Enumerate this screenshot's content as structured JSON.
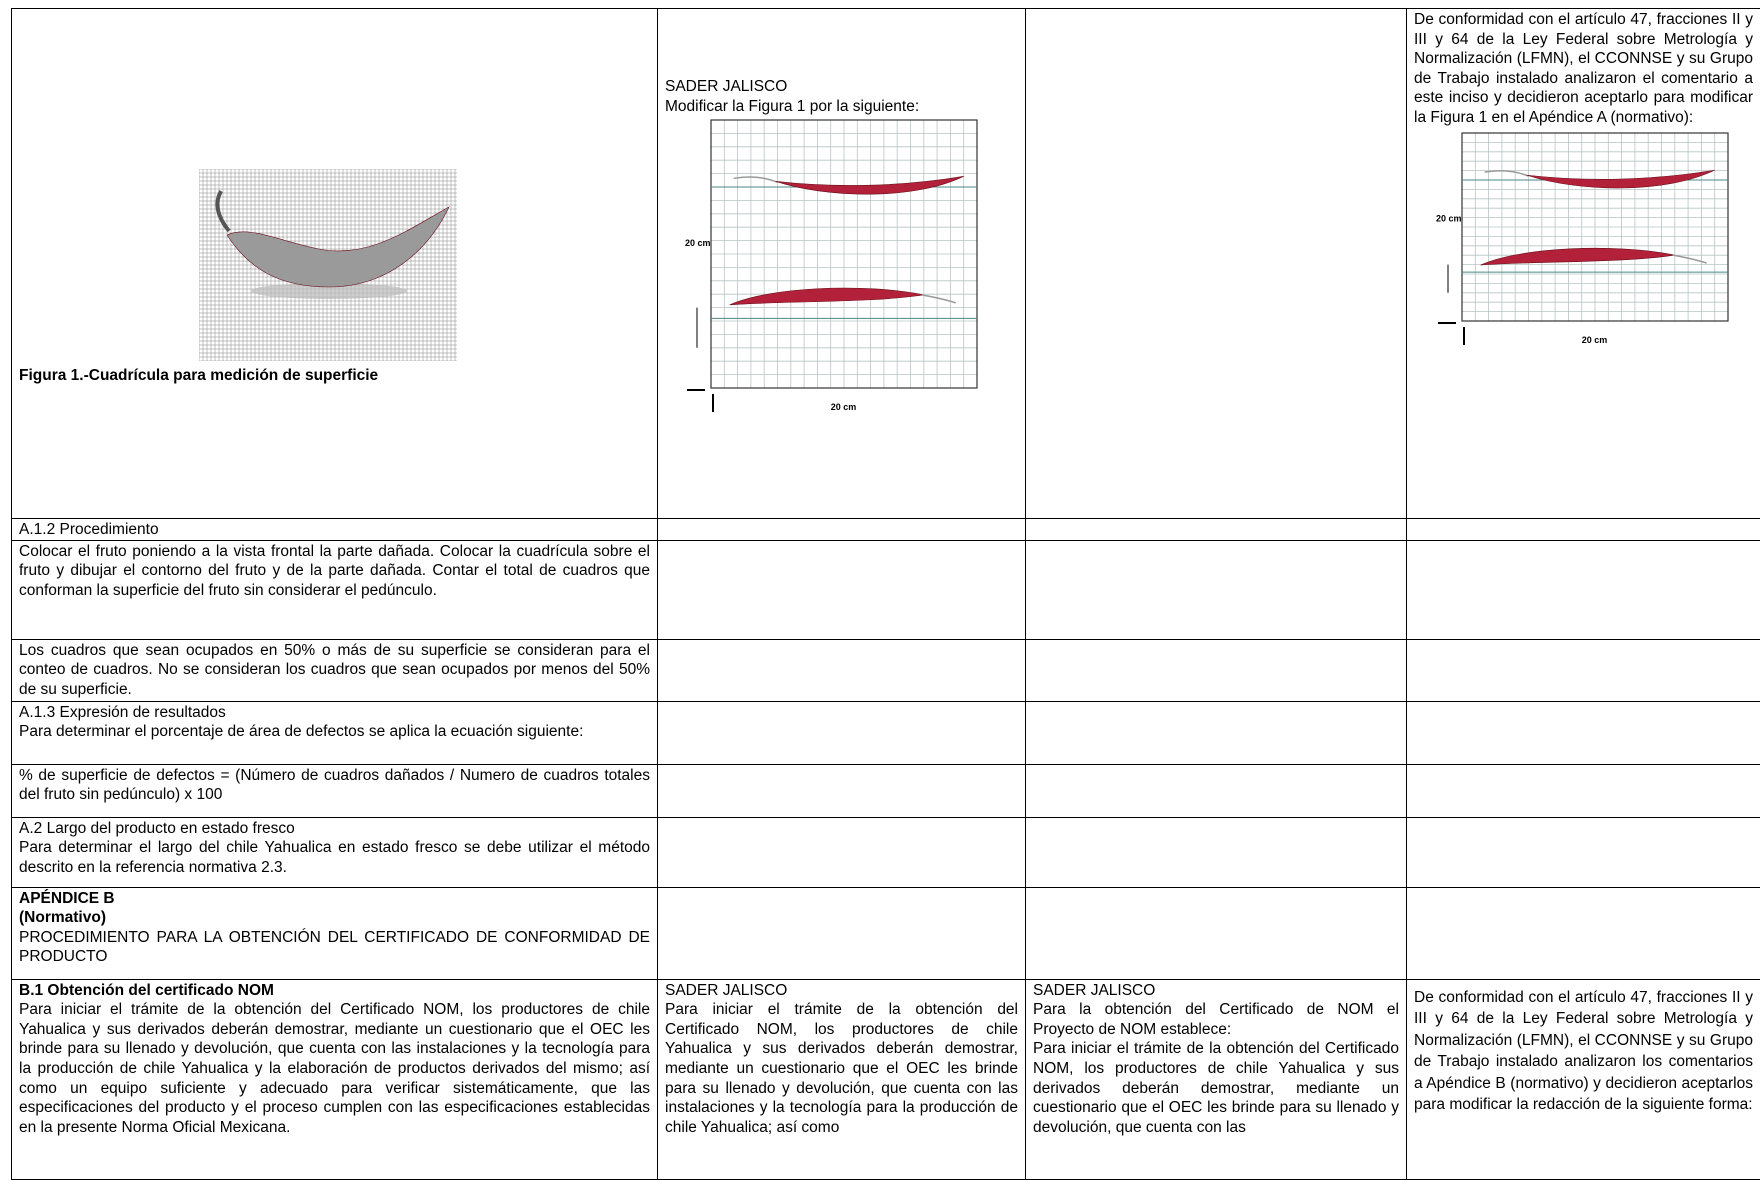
{
  "table": {
    "rows": [
      [
        {
          "caption": "Figura 1.-Cuadrícula para medición de superficie"
        },
        {
          "paragraphs": [
            "SADER JALISCO",
            "Modificar la Figura 1 por la siguiente:"
          ],
          "figure": {
            "y_label": "20 cm",
            "x_label": "20 cm"
          }
        },
        null,
        {
          "paragraphs": [
            "De conformidad con el artículo 47, fracciones II y III y 64 de la Ley Federal sobre Metrología y Normalización (LFMN), el CCONNSE y su Grupo de Trabajo instalado analizaron el comentario a este inciso y decidieron aceptarlo para modificar la Figura 1 en el Apéndice A (normativo):"
          ],
          "figure": {
            "y_label": "20 cm",
            "x_label": "20 cm"
          }
        }
      ],
      [
        {
          "paragraphs": [
            "A.1.2 Procedimiento"
          ]
        },
        null,
        null,
        null
      ],
      [
        {
          "paragraphs": [
            "Colocar el fruto poniendo a la vista frontal la parte dañada. Colocar la cuadrícula sobre el fruto y dibujar el contorno del fruto y de la parte dañada. Contar el total de cuadros que conforman la superficie del fruto sin considerar el pedúnculo."
          ]
        },
        null,
        null,
        null
      ],
      [
        {
          "paragraphs": [
            "Los cuadros que sean ocupados en 50% o más de su superficie se consideran para el conteo de cuadros. No se consideran los cuadros que sean ocupados por menos del 50% de su superficie."
          ]
        },
        null,
        null,
        null
      ],
      [
        {
          "paragraphs": [
            "A.1.3 Expresión de resultados",
            "Para determinar el porcentaje de área de defectos se aplica la ecuación siguiente:"
          ]
        },
        null,
        null,
        null
      ],
      [
        {
          "paragraphs": [
            "% de superficie de defectos = (Número de cuadros dañados / Numero de cuadros totales del fruto sin pedúnculo) x 100"
          ]
        },
        null,
        null,
        null
      ],
      [
        {
          "paragraphs": [
            "A.2 Largo del producto en estado fresco",
            "Para determinar el largo del chile Yahualica en estado fresco se debe utilizar el método descrito en la referencia normativa 2.3."
          ]
        },
        null,
        null,
        null
      ],
      [
        {
          "bold": [
            "APÉNDICE B",
            "(Normativo)"
          ],
          "paragraphs": [
            "PROCEDIMIENTO PARA LA OBTENCIÓN DEL CERTIFICADO DE CONFORMIDAD DE PRODUCTO"
          ]
        },
        null,
        null,
        null
      ],
      [
        {
          "bold": [
            "B.1 Obtención del certificado NOM"
          ],
          "paragraphs": [
            "Para iniciar el trámite de la obtención del Certificado NOM, los productores de chile Yahualica y sus derivados deberán demostrar, mediante un cuestionario que el OEC les brinde para su llenado y devolución, que cuenta con las instalaciones y la tecnología para la producción de chile Yahualica y la elaboración de productos derivados del mismo; así como un equipo suficiente y adecuado para verificar sistemáticamente, que las especificaciones del producto y el proceso cumplen con las especificaciones establecidas en la presente Norma Oficial Mexicana."
          ]
        },
        {
          "paragraphs": [
            "SADER JALISCO",
            "Para iniciar el trámite de la obtención del Certificado NOM, los productores de chile Yahualica y sus derivados deberán demostrar, mediante un cuestionario que el OEC les brinde para su llenado y devolución, que cuenta con las instalaciones y la tecnología para la producción de chile Yahualica; así como"
          ]
        },
        {
          "paragraphs": [
            "SADER JALISCO",
            "Para la obtención del Certificado de NOM el Proyecto de NOM establece:",
            "Para iniciar el trámite de la obtención del Certificado NOM, los productores de chile Yahualica y sus derivados deberán demostrar, mediante un cuestionario que el OEC les brinde para su llenado y devolución, que cuenta con las"
          ]
        },
        {
          "paragraphs": [
            "De conformidad con el artículo 47, fracciones II y III y 64 de la Ley Federal sobre Metrología y Normalización (LFMN), el CCONNSE y su Grupo de Trabajo instalado analizaron los comentarios a Apéndice B (normativo) y decidieron aceptarlos para modificar la redacción de la siguiente forma:"
          ]
        }
      ]
    ]
  }
}
